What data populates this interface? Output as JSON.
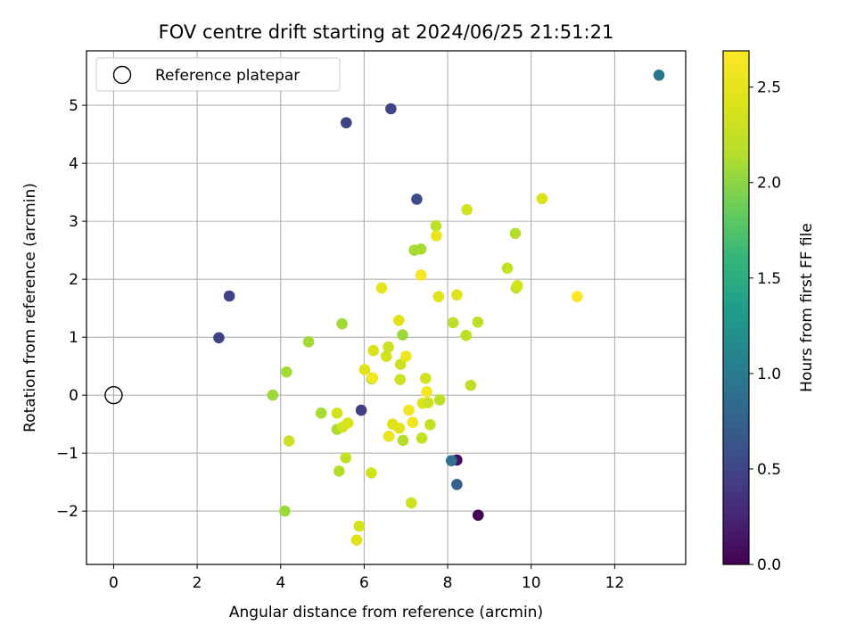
{
  "chart_data": {
    "type": "scatter",
    "title": "FOV centre drift starting at 2024/06/25 21:51:21",
    "xlabel": "Angular distance from reference (arcmin)",
    "ylabel": "Rotation from reference (arcmin)",
    "xlim": [
      -0.65,
      13.7
    ],
    "ylim": [
      -2.92,
      5.94
    ],
    "xticks": [
      0,
      2,
      4,
      6,
      8,
      10,
      12
    ],
    "yticks": [
      -2,
      -1,
      0,
      1,
      2,
      3,
      4,
      5
    ],
    "grid": true,
    "legend": {
      "placement": "top-left",
      "entries": [
        "Reference platepar"
      ]
    },
    "reference_point": {
      "x": 0,
      "y": 0,
      "label": "Reference platepar"
    },
    "colorbar": {
      "label": "Hours from first FF file",
      "range": [
        0.0,
        2.69
      ],
      "ticks": [
        "0.0",
        "0.5",
        "1.0",
        "1.5",
        "2.0",
        "2.5"
      ],
      "tick_values": [
        0.0,
        0.5,
        1.0,
        1.5,
        2.0,
        2.5
      ],
      "colormap": "viridis"
    },
    "points": [
      {
        "x": 8.73,
        "y": -2.07,
        "c": 0.0
      },
      {
        "x": 8.22,
        "y": -1.12,
        "c": 0.08
      },
      {
        "x": 5.93,
        "y": -0.26,
        "c": 0.45
      },
      {
        "x": 2.52,
        "y": 0.99,
        "c": 0.48
      },
      {
        "x": 2.77,
        "y": 1.71,
        "c": 0.48
      },
      {
        "x": 5.57,
        "y": 4.7,
        "c": 0.48
      },
      {
        "x": 6.64,
        "y": 4.94,
        "c": 0.48
      },
      {
        "x": 7.26,
        "y": 3.38,
        "c": 0.55
      },
      {
        "x": 8.22,
        "y": -1.54,
        "c": 0.75
      },
      {
        "x": 8.09,
        "y": -1.13,
        "c": 0.9
      },
      {
        "x": 13.06,
        "y": 5.52,
        "c": 0.95
      },
      {
        "x": 3.81,
        "y": 0.0,
        "c": 2.05
      },
      {
        "x": 4.14,
        "y": 0.4,
        "c": 2.08
      },
      {
        "x": 4.1,
        "y": -2.0,
        "c": 2.05
      },
      {
        "x": 4.67,
        "y": 0.92,
        "c": 2.08
      },
      {
        "x": 5.47,
        "y": 1.23,
        "c": 2.08
      },
      {
        "x": 4.97,
        "y": -0.31,
        "c": 2.1
      },
      {
        "x": 5.35,
        "y": -0.59,
        "c": 2.12
      },
      {
        "x": 5.4,
        "y": -1.31,
        "c": 2.15
      },
      {
        "x": 5.56,
        "y": -1.08,
        "c": 2.25
      },
      {
        "x": 4.2,
        "y": -0.79,
        "c": 2.3
      },
      {
        "x": 5.35,
        "y": -0.31,
        "c": 2.35
      },
      {
        "x": 5.48,
        "y": -0.55,
        "c": 2.35
      },
      {
        "x": 5.61,
        "y": -0.48,
        "c": 2.4
      },
      {
        "x": 5.82,
        "y": -2.5,
        "c": 2.42
      },
      {
        "x": 5.88,
        "y": -2.26,
        "c": 2.35
      },
      {
        "x": 6.01,
        "y": 0.44,
        "c": 2.45
      },
      {
        "x": 6.18,
        "y": 0.28,
        "c": 2.15
      },
      {
        "x": 6.17,
        "y": -1.34,
        "c": 2.35
      },
      {
        "x": 6.22,
        "y": 0.77,
        "c": 2.4
      },
      {
        "x": 6.2,
        "y": 0.3,
        "c": 2.6
      },
      {
        "x": 6.42,
        "y": 1.85,
        "c": 2.5
      },
      {
        "x": 6.53,
        "y": 0.67,
        "c": 2.35
      },
      {
        "x": 6.58,
        "y": 0.83,
        "c": 2.3
      },
      {
        "x": 6.59,
        "y": -0.71,
        "c": 2.55
      },
      {
        "x": 6.68,
        "y": -0.5,
        "c": 2.45
      },
      {
        "x": 6.83,
        "y": 1.29,
        "c": 2.45
      },
      {
        "x": 6.84,
        "y": -0.57,
        "c": 2.45
      },
      {
        "x": 6.87,
        "y": 0.53,
        "c": 2.3
      },
      {
        "x": 6.92,
        "y": 1.04,
        "c": 2.05
      },
      {
        "x": 6.93,
        "y": -0.78,
        "c": 2.15
      },
      {
        "x": 6.86,
        "y": 0.27,
        "c": 2.3
      },
      {
        "x": 7.0,
        "y": 0.67,
        "c": 2.55
      },
      {
        "x": 7.07,
        "y": -0.26,
        "c": 2.6
      },
      {
        "x": 7.13,
        "y": -1.86,
        "c": 2.3
      },
      {
        "x": 7.16,
        "y": -0.47,
        "c": 2.6
      },
      {
        "x": 7.2,
        "y": 2.5,
        "c": 2.1
      },
      {
        "x": 7.36,
        "y": 2.52,
        "c": 2.1
      },
      {
        "x": 7.36,
        "y": 2.07,
        "c": 2.65
      },
      {
        "x": 7.38,
        "y": -0.74,
        "c": 2.25
      },
      {
        "x": 7.4,
        "y": -0.14,
        "c": 2.45
      },
      {
        "x": 7.47,
        "y": 0.29,
        "c": 2.35
      },
      {
        "x": 7.5,
        "y": 0.06,
        "c": 2.6
      },
      {
        "x": 7.53,
        "y": -0.13,
        "c": 2.3
      },
      {
        "x": 7.58,
        "y": -0.51,
        "c": 2.25
      },
      {
        "x": 7.72,
        "y": 2.92,
        "c": 2.2
      },
      {
        "x": 7.73,
        "y": 2.75,
        "c": 2.55
      },
      {
        "x": 7.78,
        "y": 1.7,
        "c": 2.45
      },
      {
        "x": 7.81,
        "y": -0.08,
        "c": 2.2
      },
      {
        "x": 8.13,
        "y": 1.25,
        "c": 2.2
      },
      {
        "x": 8.22,
        "y": 1.73,
        "c": 2.45
      },
      {
        "x": 8.44,
        "y": 1.03,
        "c": 2.2
      },
      {
        "x": 8.46,
        "y": 3.2,
        "c": 2.35
      },
      {
        "x": 8.55,
        "y": 0.17,
        "c": 2.2
      },
      {
        "x": 8.72,
        "y": 1.26,
        "c": 2.2
      },
      {
        "x": 9.43,
        "y": 2.19,
        "c": 2.25
      },
      {
        "x": 9.62,
        "y": 2.79,
        "c": 2.15
      },
      {
        "x": 9.64,
        "y": 1.85,
        "c": 2.2
      },
      {
        "x": 9.67,
        "y": 1.89,
        "c": 2.35
      },
      {
        "x": 10.26,
        "y": 3.39,
        "c": 2.4
      },
      {
        "x": 11.1,
        "y": 1.7,
        "c": 2.69
      }
    ]
  }
}
